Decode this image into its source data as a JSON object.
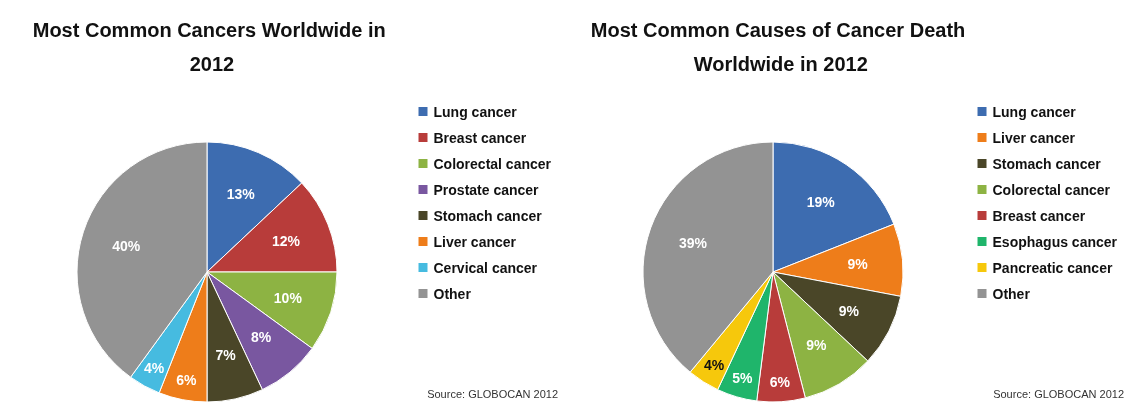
{
  "chart_data": [
    {
      "type": "pie",
      "title": "Most Common Cancers Worldwide in 2012",
      "categories": [
        "Lung cancer",
        "Breast cancer",
        "Colorectal cancer",
        "Prostate cancer",
        "Stomach cancer",
        "Liver cancer",
        "Cervical cancer",
        "Other"
      ],
      "values": [
        13,
        12,
        10,
        8,
        7,
        6,
        4,
        40
      ],
      "colors": [
        "#3d6cb0",
        "#b83c3a",
        "#8db343",
        "#7957a0",
        "#4a4628",
        "#ee7d1a",
        "#46bbe0",
        "#939393"
      ],
      "legend": "right",
      "value_labels": [
        "13%",
        "12%",
        "10%",
        "8%",
        "7%",
        "6%",
        "4%",
        "40%"
      ],
      "annotations": [
        "Source: GLOBOCAN 2012"
      ]
    },
    {
      "type": "pie",
      "title": "Most Common Causes of Cancer Death Worldwide in 2012",
      "categories": [
        "Lung cancer",
        "Liver cancer",
        "Stomach cancer",
        "Colorectal cancer",
        "Breast cancer",
        "Esophagus cancer",
        "Pancreatic cancer",
        "Other"
      ],
      "values": [
        19,
        9,
        9,
        9,
        6,
        5,
        4,
        39
      ],
      "colors": [
        "#3d6cb0",
        "#ee7d1a",
        "#4a4628",
        "#8db343",
        "#b83c3a",
        "#1fb56b",
        "#f6c80c",
        "#939393"
      ],
      "legend": "right",
      "value_labels": [
        "19%",
        "9%",
        "9%",
        "9%",
        "6%",
        "5%",
        "4%",
        "39%"
      ],
      "annotations": [
        "Source: GLOBOCAN 2012"
      ]
    }
  ]
}
